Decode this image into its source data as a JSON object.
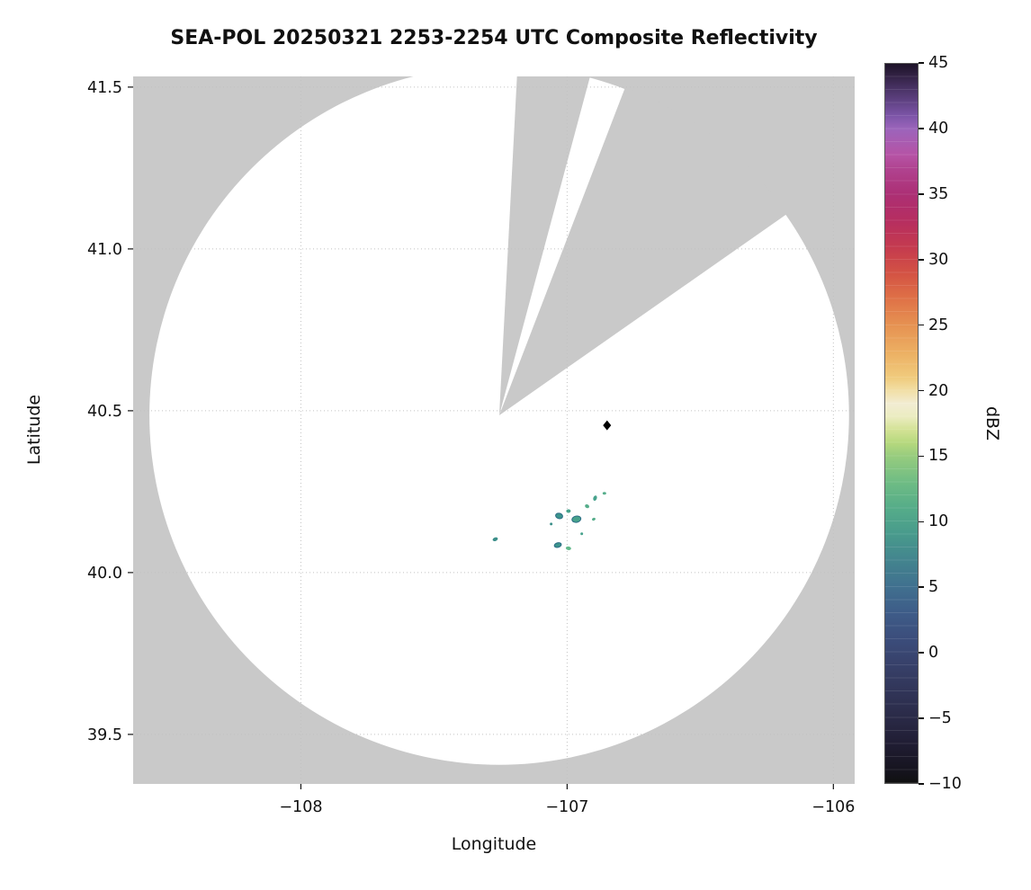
{
  "chart_data": {
    "type": "heatmap",
    "title": "SEA-POL 20250321 2253-2254 UTC Composite Reflectivity",
    "xlabel": "Longitude",
    "ylabel": "Latitude",
    "xlim": [
      -108.63,
      -105.92
    ],
    "ylim": [
      39.347,
      41.533
    ],
    "xticks": {
      "values": [
        -108,
        -107,
        -106
      ],
      "labels": [
        "−108",
        "−107",
        "−106"
      ]
    },
    "yticks": {
      "values": [
        39.5,
        40.0,
        40.5,
        41.0,
        41.5
      ],
      "labels": [
        "39.5",
        "40.0",
        "40.5",
        "41.0",
        "41.5"
      ]
    },
    "grid": {
      "visible": true,
      "style": "dotted",
      "color": "#c2c2c2"
    },
    "outside_coverage_color": "#c9c9c9",
    "coverage_fill": "#ffffff",
    "radar": {
      "center_lon": -107.255,
      "center_lat": 40.486,
      "coverage_radius_deg_lat": 1.08
    },
    "blocked_sectors_az_deg": [
      {
        "start": 3,
        "end": 15
      },
      {
        "start": 21,
        "end": 55
      }
    ],
    "marker": {
      "lon": -106.85,
      "lat": 40.455,
      "shape": "diamond",
      "color": "#000000"
    },
    "echoes_dbz_cells": [
      {
        "lon": -107.27,
        "lat": 40.103,
        "dbz": 8,
        "rx": 3,
        "ry": 2,
        "rot": -20,
        "color": "#3c8f8a"
      },
      {
        "lon": -107.03,
        "lat": 40.175,
        "dbz": 9,
        "rx": 4,
        "ry": 3,
        "rot": 15,
        "color": "#3c948c",
        "edge": "#2b6c85"
      },
      {
        "lon": -106.965,
        "lat": 40.165,
        "dbz": 10,
        "rx": 5,
        "ry": 3.5,
        "rot": -10,
        "color": "#47a28c",
        "edge": "#2b6c85"
      },
      {
        "lon": -106.995,
        "lat": 40.19,
        "dbz": 10,
        "rx": 2.5,
        "ry": 2,
        "rot": 0,
        "color": "#47a28c"
      },
      {
        "lon": -106.925,
        "lat": 40.205,
        "dbz": 11,
        "rx": 2.5,
        "ry": 2,
        "rot": 30,
        "color": "#55ad8a"
      },
      {
        "lon": -106.895,
        "lat": 40.23,
        "dbz": 10,
        "rx": 2,
        "ry": 3,
        "rot": 20,
        "color": "#47a28c"
      },
      {
        "lon": -106.86,
        "lat": 40.245,
        "dbz": 11,
        "rx": 2,
        "ry": 1.5,
        "rot": 0,
        "color": "#55ad8a"
      },
      {
        "lon": -107.035,
        "lat": 40.085,
        "dbz": 9,
        "rx": 4,
        "ry": 2.5,
        "rot": -15,
        "color": "#3c948c",
        "edge": "#2b6c85"
      },
      {
        "lon": -106.995,
        "lat": 40.075,
        "dbz": 12,
        "rx": 3,
        "ry": 2,
        "rot": 10,
        "color": "#63b98b"
      },
      {
        "lon": -106.945,
        "lat": 40.12,
        "dbz": 10,
        "rx": 1.5,
        "ry": 1.5,
        "rot": 0,
        "color": "#47a28c"
      },
      {
        "lon": -107.06,
        "lat": 40.15,
        "dbz": 8,
        "rx": 1.5,
        "ry": 1.5,
        "rot": 0,
        "color": "#3c8f8a"
      },
      {
        "lon": -106.9,
        "lat": 40.165,
        "dbz": 11,
        "rx": 2,
        "ry": 1.5,
        "rot": -25,
        "color": "#55ad8a"
      }
    ],
    "colorbar": {
      "label": "dBZ",
      "min": -10,
      "max": 45,
      "tick_values": [
        -10,
        -5,
        0,
        5,
        10,
        15,
        20,
        25,
        30,
        35,
        40,
        45
      ],
      "tick_labels": [
        "−10",
        "−5",
        "0",
        "5",
        "10",
        "15",
        "20",
        "25",
        "30",
        "35",
        "40",
        "45"
      ],
      "stops": [
        {
          "value": -10,
          "color": "#101010"
        },
        {
          "value": -9,
          "color": "#16141f"
        },
        {
          "value": -7,
          "color": "#201d33"
        },
        {
          "value": -5,
          "color": "#2a2a47"
        },
        {
          "value": -3,
          "color": "#313558"
        },
        {
          "value": -1,
          "color": "#374069"
        },
        {
          "value": 1,
          "color": "#3b4d7b"
        },
        {
          "value": 3,
          "color": "#3e5c88"
        },
        {
          "value": 5,
          "color": "#40708f"
        },
        {
          "value": 7,
          "color": "#43848e"
        },
        {
          "value": 9,
          "color": "#489a8c"
        },
        {
          "value": 11,
          "color": "#55ac89"
        },
        {
          "value": 13,
          "color": "#6fbc84"
        },
        {
          "value": 15,
          "color": "#97cc7e"
        },
        {
          "value": 16,
          "color": "#b5d87d"
        },
        {
          "value": 17,
          "color": "#d2e295"
        },
        {
          "value": 18,
          "color": "#ebecc0"
        },
        {
          "value": 19,
          "color": "#f2ecd3"
        },
        {
          "value": 20,
          "color": "#f2dfa6"
        },
        {
          "value": 21,
          "color": "#f0cb7d"
        },
        {
          "value": 23,
          "color": "#ecae62"
        },
        {
          "value": 25,
          "color": "#e69252"
        },
        {
          "value": 27,
          "color": "#df7247"
        },
        {
          "value": 29,
          "color": "#d35244"
        },
        {
          "value": 31,
          "color": "#c43a4f"
        },
        {
          "value": 33,
          "color": "#b62e60"
        },
        {
          "value": 35,
          "color": "#ac2f74"
        },
        {
          "value": 37,
          "color": "#b04390"
        },
        {
          "value": 38,
          "color": "#b653a5"
        },
        {
          "value": 40,
          "color": "#9c64bb"
        },
        {
          "value": 41,
          "color": "#7d55a8"
        },
        {
          "value": 42,
          "color": "#634488"
        },
        {
          "value": 43,
          "color": "#4b3468"
        },
        {
          "value": 44,
          "color": "#342347"
        },
        {
          "value": 45,
          "color": "#1d1328"
        }
      ]
    }
  }
}
